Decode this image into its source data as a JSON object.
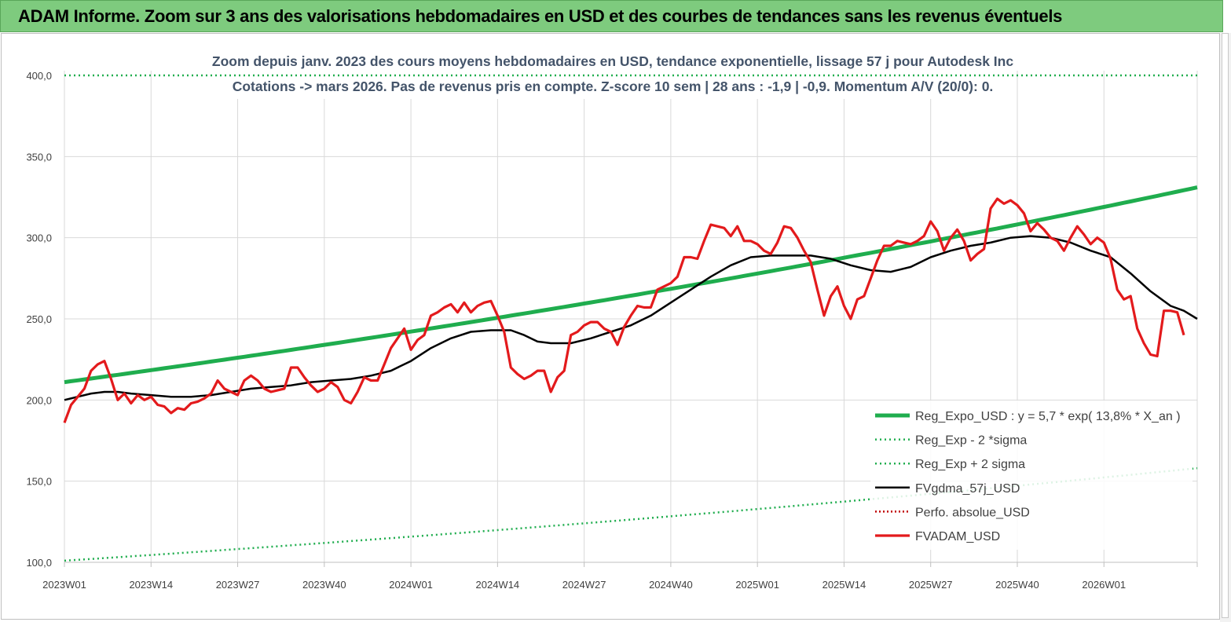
{
  "header": {
    "title": "ADAM Informe. Zoom sur 3 ans des valorisations hebdomadaires en USD et des courbes de tendances sans les revenus éventuels"
  },
  "colors": {
    "reg_expo": "#1fad4e",
    "reg_bands": "#1fad4e",
    "fvgdma": "#000000",
    "perfo": "#c00000",
    "fvadam": "#e31a1c",
    "banner": "#7ecb7e"
  },
  "chart_data": {
    "type": "line",
    "title_line1": "Zoom depuis janv. 2023 des cours moyens hebdomadaires en USD, tendance exponentielle, lissage 57 j pour Autodesk Inc",
    "title_line2": "Cotations -> mars 2026. Pas de revenus pris en  compte. Z-score 10 sem  | 28 ans : -1,9 | -0,9. Momentum A/V (20/0): 0.",
    "ylim": [
      100,
      400
    ],
    "yticks": [
      "100,0",
      "150,0",
      "200,0",
      "250,0",
      "300,0",
      "350,0",
      "400,0"
    ],
    "ytick_values": [
      100,
      150,
      200,
      250,
      300,
      350,
      400
    ],
    "xticks": [
      "2023W01",
      "2023W14",
      "2023W27",
      "2023W40",
      "2024W01",
      "2024W14",
      "2024W27",
      "2024W40",
      "2025W01",
      "2025W14",
      "2025W27",
      "2025W40",
      "2026W01"
    ],
    "xtick_weeks": [
      0,
      13,
      26,
      39,
      52,
      65,
      78,
      91,
      104,
      117,
      130,
      143,
      156
    ],
    "x_max_week": 170,
    "legend": [
      {
        "key": "reg_expo",
        "label": "Reg_Expo_USD : y = 5,7 * exp( 13,8% *  X_an )",
        "style": "solid-thick"
      },
      {
        "key": "reg_minus",
        "label": "Reg_Exp - 2 *sigma",
        "style": "dotted-green"
      },
      {
        "key": "reg_plus",
        "label": "Reg_Exp + 2 sigma",
        "style": "dotted-green"
      },
      {
        "key": "fvgdma",
        "label": "FVgdma_57j_USD",
        "style": "solid-black"
      },
      {
        "key": "perfo",
        "label": "Perfo. absolue_USD",
        "style": "dotted-red"
      },
      {
        "key": "fvadam",
        "label": "FVADAM_USD",
        "style": "solid-red"
      }
    ],
    "series": [
      {
        "name": "Reg_Expo_USD",
        "start": 211,
        "end": 331
      },
      {
        "name": "Reg_Exp - 2 *sigma",
        "start": 101,
        "end": 158
      },
      {
        "name": "Reg_Exp + 2 sigma",
        "start": 400,
        "end": 400
      },
      {
        "name": "FVgdma_57j_USD",
        "points": [
          [
            0,
            200
          ],
          [
            2,
            202
          ],
          [
            4,
            204
          ],
          [
            6,
            205
          ],
          [
            8,
            205
          ],
          [
            10,
            204
          ],
          [
            13,
            203
          ],
          [
            16,
            202
          ],
          [
            19,
            202
          ],
          [
            22,
            203
          ],
          [
            25,
            205
          ],
          [
            28,
            207
          ],
          [
            31,
            208
          ],
          [
            34,
            209
          ],
          [
            37,
            211
          ],
          [
            40,
            212
          ],
          [
            43,
            213
          ],
          [
            46,
            215
          ],
          [
            49,
            218
          ],
          [
            52,
            224
          ],
          [
            55,
            232
          ],
          [
            58,
            238
          ],
          [
            61,
            242
          ],
          [
            64,
            243
          ],
          [
            67,
            243
          ],
          [
            69,
            240
          ],
          [
            71,
            236
          ],
          [
            73,
            235
          ],
          [
            76,
            235
          ],
          [
            79,
            238
          ],
          [
            82,
            242
          ],
          [
            85,
            246
          ],
          [
            88,
            252
          ],
          [
            91,
            260
          ],
          [
            94,
            268
          ],
          [
            97,
            276
          ],
          [
            100,
            283
          ],
          [
            103,
            288
          ],
          [
            106,
            289
          ],
          [
            109,
            289
          ],
          [
            112,
            289
          ],
          [
            115,
            287
          ],
          [
            118,
            283
          ],
          [
            121,
            280
          ],
          [
            124,
            279
          ],
          [
            127,
            282
          ],
          [
            130,
            288
          ],
          [
            133,
            292
          ],
          [
            136,
            295
          ],
          [
            139,
            297
          ],
          [
            142,
            300
          ],
          [
            145,
            301
          ],
          [
            148,
            300
          ],
          [
            151,
            297
          ],
          [
            154,
            292
          ],
          [
            157,
            288
          ],
          [
            160,
            278
          ],
          [
            163,
            267
          ],
          [
            166,
            258
          ],
          [
            168,
            255
          ],
          [
            170,
            250
          ]
        ]
      },
      {
        "name": "FVADAM_USD",
        "points": [
          [
            0,
            186
          ],
          [
            1,
            197
          ],
          [
            2,
            202
          ],
          [
            3,
            207
          ],
          [
            4,
            218
          ],
          [
            5,
            222
          ],
          [
            6,
            224
          ],
          [
            7,
            213
          ],
          [
            8,
            200
          ],
          [
            9,
            204
          ],
          [
            10,
            198
          ],
          [
            11,
            203
          ],
          [
            12,
            200
          ],
          [
            13,
            202
          ],
          [
            14,
            197
          ],
          [
            15,
            196
          ],
          [
            16,
            192
          ],
          [
            17,
            195
          ],
          [
            18,
            194
          ],
          [
            19,
            198
          ],
          [
            20,
            199
          ],
          [
            21,
            201
          ],
          [
            22,
            204
          ],
          [
            23,
            212
          ],
          [
            24,
            207
          ],
          [
            25,
            205
          ],
          [
            26,
            203
          ],
          [
            27,
            212
          ],
          [
            28,
            215
          ],
          [
            29,
            212
          ],
          [
            30,
            207
          ],
          [
            31,
            205
          ],
          [
            32,
            206
          ],
          [
            33,
            207
          ],
          [
            34,
            220
          ],
          [
            35,
            220
          ],
          [
            36,
            214
          ],
          [
            37,
            209
          ],
          [
            38,
            205
          ],
          [
            39,
            207
          ],
          [
            40,
            211
          ],
          [
            41,
            208
          ],
          [
            42,
            200
          ],
          [
            43,
            198
          ],
          [
            44,
            205
          ],
          [
            45,
            214
          ],
          [
            46,
            212
          ],
          [
            47,
            212
          ],
          [
            48,
            222
          ],
          [
            49,
            232
          ],
          [
            50,
            238
          ],
          [
            51,
            244
          ],
          [
            52,
            231
          ],
          [
            53,
            237
          ],
          [
            54,
            240
          ],
          [
            55,
            252
          ],
          [
            56,
            254
          ],
          [
            57,
            257
          ],
          [
            58,
            259
          ],
          [
            59,
            254
          ],
          [
            60,
            260
          ],
          [
            61,
            254
          ],
          [
            62,
            258
          ],
          [
            63,
            260
          ],
          [
            64,
            261
          ],
          [
            65,
            252
          ],
          [
            66,
            242
          ],
          [
            67,
            220
          ],
          [
            68,
            216
          ],
          [
            69,
            213
          ],
          [
            70,
            215
          ],
          [
            71,
            218
          ],
          [
            72,
            218
          ],
          [
            73,
            205
          ],
          [
            74,
            214
          ],
          [
            75,
            218
          ],
          [
            76,
            240
          ],
          [
            77,
            242
          ],
          [
            78,
            246
          ],
          [
            79,
            248
          ],
          [
            80,
            248
          ],
          [
            81,
            244
          ],
          [
            82,
            242
          ],
          [
            83,
            234
          ],
          [
            84,
            245
          ],
          [
            85,
            252
          ],
          [
            86,
            258
          ],
          [
            87,
            257
          ],
          [
            88,
            257
          ],
          [
            89,
            268
          ],
          [
            90,
            270
          ],
          [
            91,
            272
          ],
          [
            92,
            276
          ],
          [
            93,
            288
          ],
          [
            94,
            288
          ],
          [
            95,
            287
          ],
          [
            96,
            298
          ],
          [
            97,
            308
          ],
          [
            98,
            307
          ],
          [
            99,
            306
          ],
          [
            100,
            301
          ],
          [
            101,
            307
          ],
          [
            102,
            298
          ],
          [
            103,
            298
          ],
          [
            104,
            296
          ],
          [
            105,
            292
          ],
          [
            106,
            290
          ],
          [
            107,
            297
          ],
          [
            108,
            307
          ],
          [
            109,
            306
          ],
          [
            110,
            300
          ],
          [
            111,
            292
          ],
          [
            112,
            285
          ],
          [
            113,
            268
          ],
          [
            114,
            252
          ],
          [
            115,
            264
          ],
          [
            116,
            270
          ],
          [
            117,
            258
          ],
          [
            118,
            250
          ],
          [
            119,
            262
          ],
          [
            120,
            264
          ],
          [
            121,
            275
          ],
          [
            122,
            286
          ],
          [
            123,
            295
          ],
          [
            124,
            295
          ],
          [
            125,
            298
          ],
          [
            126,
            297
          ],
          [
            127,
            296
          ],
          [
            128,
            298
          ],
          [
            129,
            301
          ],
          [
            130,
            310
          ],
          [
            131,
            304
          ],
          [
            132,
            292
          ],
          [
            133,
            300
          ],
          [
            134,
            305
          ],
          [
            135,
            298
          ],
          [
            136,
            286
          ],
          [
            137,
            290
          ],
          [
            138,
            293
          ],
          [
            139,
            318
          ],
          [
            140,
            324
          ],
          [
            141,
            321
          ],
          [
            142,
            323
          ],
          [
            143,
            320
          ],
          [
            144,
            315
          ],
          [
            145,
            304
          ],
          [
            146,
            309
          ],
          [
            147,
            305
          ],
          [
            148,
            300
          ],
          [
            149,
            298
          ],
          [
            150,
            292
          ],
          [
            151,
            300
          ],
          [
            152,
            307
          ],
          [
            153,
            302
          ],
          [
            154,
            296
          ],
          [
            155,
            300
          ],
          [
            156,
            297
          ],
          [
            157,
            287
          ],
          [
            158,
            268
          ],
          [
            159,
            262
          ],
          [
            160,
            264
          ],
          [
            161,
            244
          ],
          [
            162,
            235
          ],
          [
            163,
            228
          ],
          [
            164,
            227
          ],
          [
            165,
            255
          ],
          [
            166,
            255
          ],
          [
            167,
            254
          ],
          [
            168,
            240
          ]
        ]
      }
    ]
  }
}
